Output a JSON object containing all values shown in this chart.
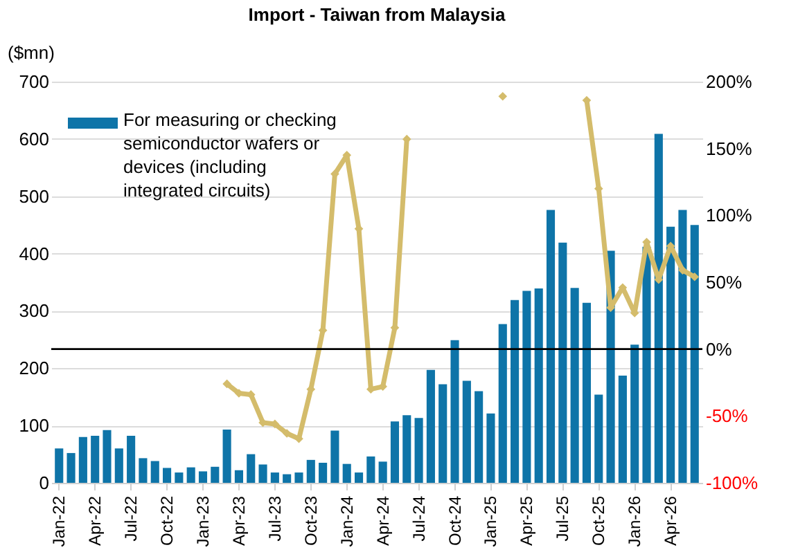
{
  "chart_data": {
    "type": "bar",
    "title": "Import - Taiwan from Malaysia",
    "ylabel": "($mn)",
    "categories": [
      "Jan-22",
      null,
      null,
      "Apr-22",
      null,
      null,
      "Jul-22",
      null,
      null,
      "Oct-22",
      null,
      null,
      "Jan-23",
      null,
      null,
      "Apr-23",
      null,
      null,
      "Jul-23",
      null,
      null,
      "Oct-23",
      null,
      null,
      "Jan-24",
      null,
      null,
      "Apr-24",
      null,
      null,
      "Jul-24",
      null,
      null,
      "Oct-24",
      null,
      null,
      "Jan-25",
      null,
      null,
      "Apr-25",
      null,
      null,
      "Jul-25",
      null,
      null,
      "Oct-25",
      null,
      null,
      "Jan-26",
      null,
      null,
      "Apr-26",
      null,
      null
    ],
    "series": [
      {
        "name": "For measuring or checking semiconductor wafers or devices (including integrated circuits)",
        "color": "#0e74a8",
        "values": [
          60,
          52,
          80,
          82,
          92,
          60,
          82,
          43,
          38,
          26,
          18,
          27,
          20,
          28,
          93,
          22,
          50,
          32,
          18,
          15,
          18,
          40,
          35,
          91,
          33,
          18,
          46,
          37,
          107,
          118,
          113,
          197,
          172,
          249,
          178,
          160,
          121,
          277,
          319,
          335,
          339,
          476,
          419,
          340,
          314,
          154,
          405,
          187,
          241,
          412,
          609,
          447,
          476,
          450
        ]
      },
      {
        "type": "line",
        "axis": "y2",
        "color": "#d4bc6b",
        "values": [
          null,
          null,
          null,
          null,
          null,
          null,
          null,
          null,
          null,
          null,
          null,
          null,
          null,
          null,
          -26,
          -33,
          -34,
          -55,
          -56,
          -63,
          -67,
          -30,
          14,
          131,
          145,
          90,
          -30,
          -28,
          16,
          157,
          null,
          null,
          null,
          null,
          null,
          null,
          null,
          189,
          null,
          null,
          null,
          null,
          null,
          null,
          186,
          120,
          31,
          46,
          27,
          80,
          52,
          77,
          59,
          54
        ]
      }
    ],
    "ylim": [
      0,
      700
    ],
    "yticks": [
      0,
      100,
      200,
      300,
      400,
      500,
      600,
      700
    ],
    "y2lim": [
      -100,
      200
    ],
    "y2ticks": [
      {
        "value": -100,
        "label": "-100%"
      },
      {
        "value": -50,
        "label": "-50%"
      },
      {
        "value": 0,
        "label": "0%"
      },
      {
        "value": 50,
        "label": "50%"
      },
      {
        "value": 100,
        "label": "100%"
      },
      {
        "value": 150,
        "label": "150%"
      },
      {
        "value": 200,
        "label": "200%"
      }
    ],
    "ref_lines": [
      {
        "axis": "y2",
        "value": 0,
        "color": "#000000"
      }
    ],
    "grid": "y",
    "legend": "top left",
    "marker": "diamond",
    "line_style": "solid"
  }
}
